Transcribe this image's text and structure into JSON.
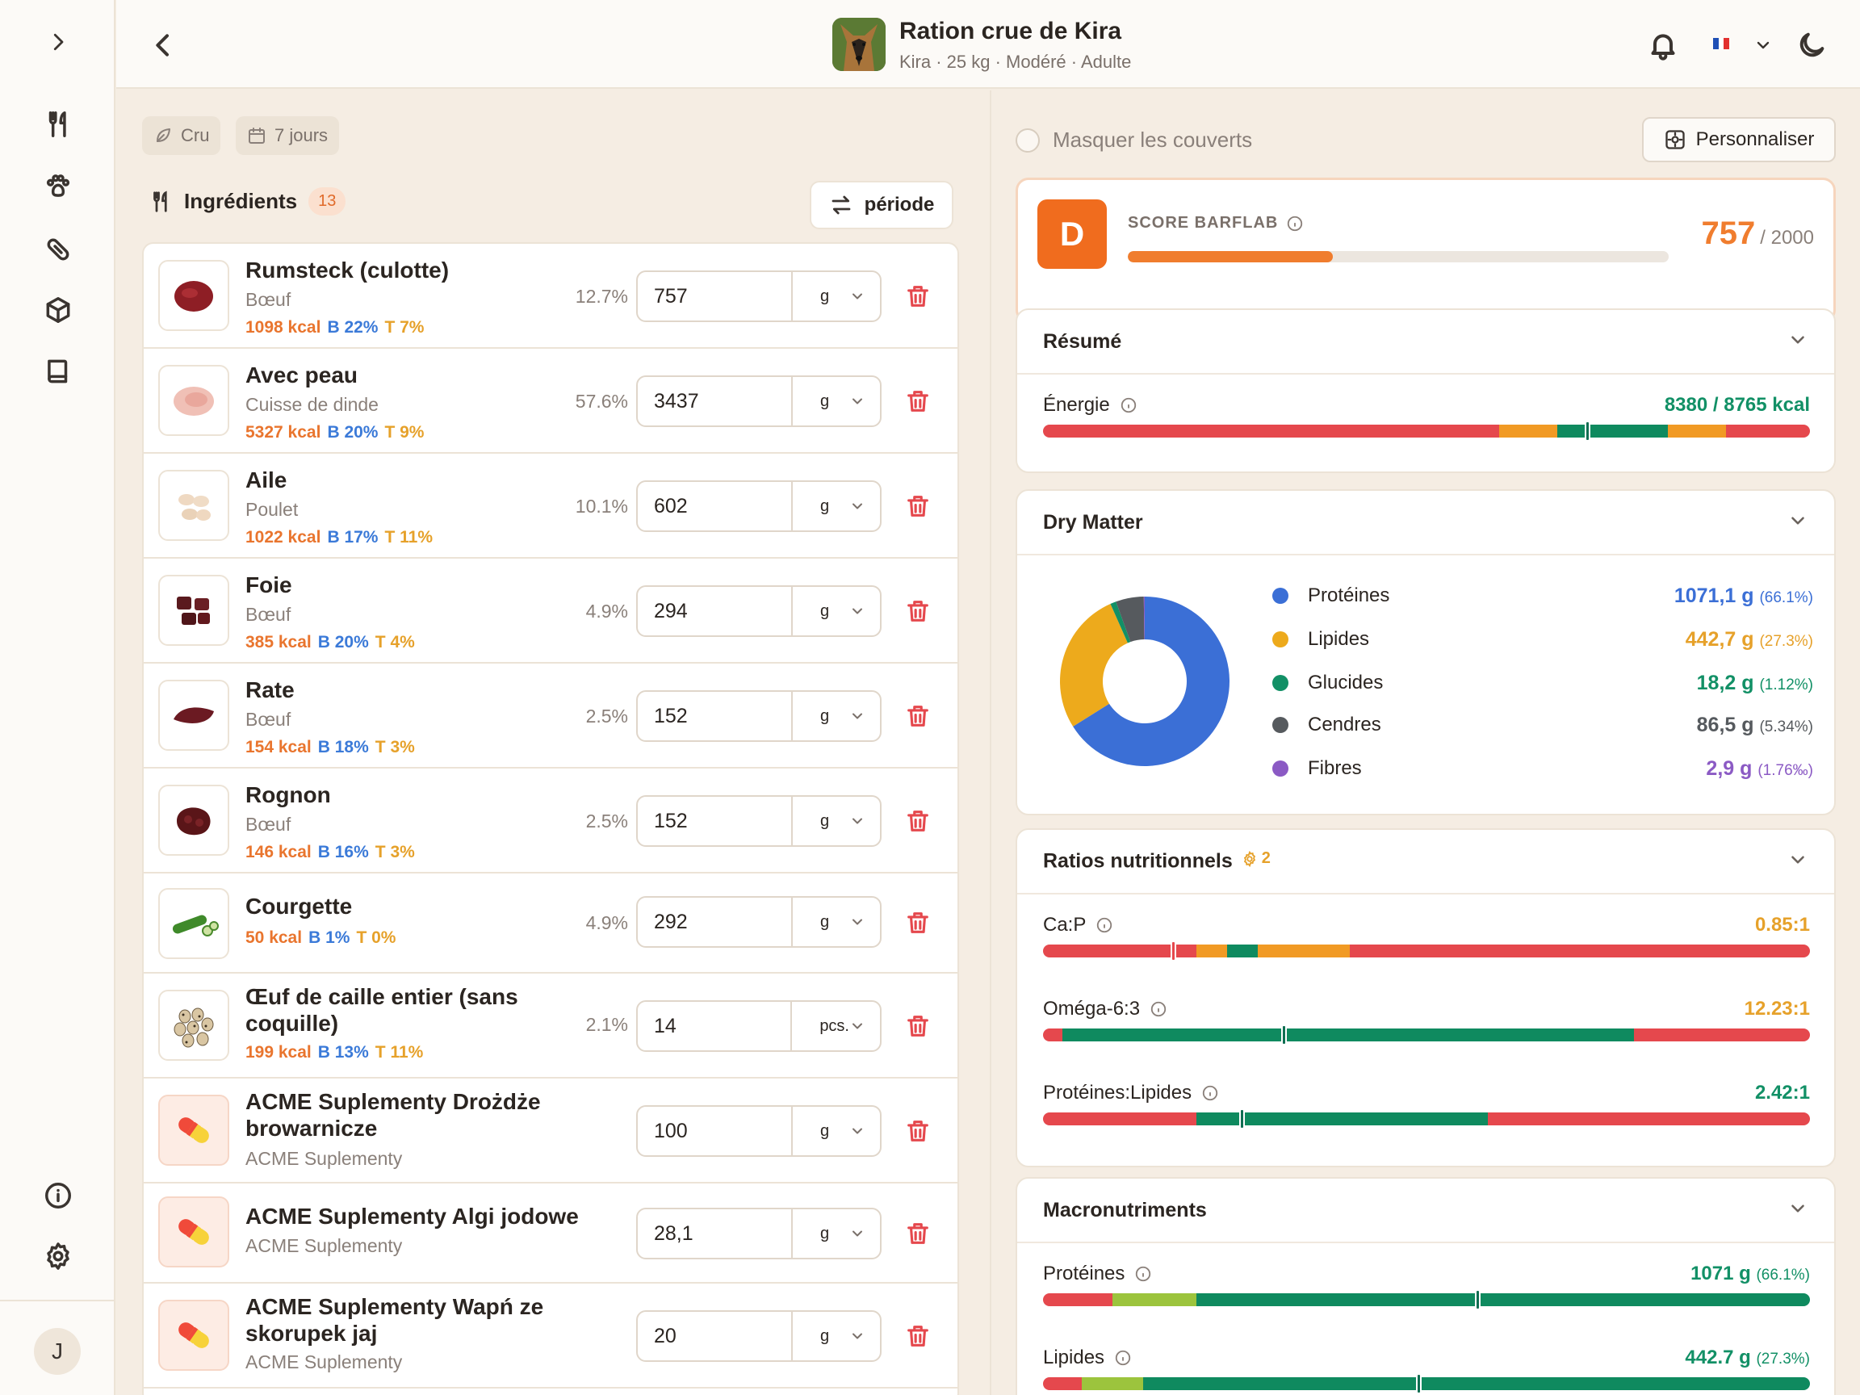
{
  "header": {
    "title": "Ration crue de Kira",
    "subtitle": "Kira · 25 kg · Modéré · Adulte"
  },
  "sidebar": {
    "items": [
      "expand-icon",
      "fork-knife-icon",
      "paw-icon",
      "pill-icon",
      "box-icon",
      "book-icon"
    ],
    "bottom": [
      "info-icon",
      "settings-icon"
    ],
    "avatar_initial": "J"
  },
  "filters": {
    "mode": "Cru",
    "duration": "7 jours"
  },
  "ingredients": {
    "title": "Ingrédients",
    "count": "13",
    "periode_label": "période",
    "items": [
      {
        "name": "Rumsteck (culotte)",
        "category": "Bœuf",
        "kcal": "1098 kcal",
        "b": "B 22%",
        "t": "T 7%",
        "pct": "12.7%",
        "qty": "757",
        "unit": "g"
      },
      {
        "name": "Avec peau",
        "category": "Cuisse de dinde",
        "kcal": "5327 kcal",
        "b": "B 20%",
        "t": "T 9%",
        "pct": "57.6%",
        "qty": "3437",
        "unit": "g"
      },
      {
        "name": "Aile",
        "category": "Poulet",
        "kcal": "1022 kcal",
        "b": "B 17%",
        "t": "T 11%",
        "pct": "10.1%",
        "qty": "602",
        "unit": "g"
      },
      {
        "name": "Foie",
        "category": "Bœuf",
        "kcal": "385 kcal",
        "b": "B 20%",
        "t": "T 4%",
        "pct": "4.9%",
        "qty": "294",
        "unit": "g"
      },
      {
        "name": "Rate",
        "category": "Bœuf",
        "kcal": "154 kcal",
        "b": "B 18%",
        "t": "T 3%",
        "pct": "2.5%",
        "qty": "152",
        "unit": "g"
      },
      {
        "name": "Rognon",
        "category": "Bœuf",
        "kcal": "146 kcal",
        "b": "B 16%",
        "t": "T 3%",
        "pct": "2.5%",
        "qty": "152",
        "unit": "g"
      },
      {
        "name": "Courgette",
        "category": "",
        "kcal": "50 kcal",
        "b": "B 1%",
        "t": "T 0%",
        "pct": "4.9%",
        "qty": "292",
        "unit": "g"
      },
      {
        "name": "Œuf de caille entier (sans coquille)",
        "category": "",
        "kcal": "199 kcal",
        "b": "B 13%",
        "t": "T 11%",
        "pct": "2.1%",
        "qty": "14",
        "unit": "pcs."
      },
      {
        "name": "ACME Suplementy Drożdże browarnicze",
        "category": "ACME Suplementy",
        "kcal": "",
        "b": "",
        "t": "",
        "pct": "",
        "qty": "100",
        "unit": "g"
      },
      {
        "name": "ACME Suplementy Algi jodowe",
        "category": "ACME Suplementy",
        "kcal": "",
        "b": "",
        "t": "",
        "pct": "",
        "qty": "28,1",
        "unit": "g"
      },
      {
        "name": "ACME Suplementy Wapń ze skorupek jaj",
        "category": "ACME Suplementy",
        "kcal": "",
        "b": "",
        "t": "",
        "pct": "",
        "qty": "20",
        "unit": "g"
      }
    ]
  },
  "right": {
    "mask_label": "Masquer les couverts",
    "personalize_label": "Personnaliser",
    "score": {
      "grade": "D",
      "label": "SCORE BARFLAB",
      "value": "757",
      "max": "/ 2000",
      "fraction": 0.3785
    },
    "resume": {
      "title": "Résumé",
      "energy_label": "Énergie",
      "energy_value": "8380 / 8765 kcal",
      "energy_position": 0.71
    },
    "dry_matter": {
      "title": "Dry Matter",
      "items": [
        {
          "name": "Protéines",
          "value": "1071,1 g",
          "pct": "(66.1%)",
          "color": "#3b6fd6"
        },
        {
          "name": "Lipides",
          "value": "442,7 g",
          "pct": "(27.3%)",
          "color": "#edaa1c"
        },
        {
          "name": "Glucides",
          "value": "18,2 g",
          "pct": "(1.12%)",
          "color": "#129066"
        },
        {
          "name": "Cendres",
          "value": "86,5 g",
          "pct": "(5.34%)",
          "color": "#565a5e"
        },
        {
          "name": "Fibres",
          "value": "2,9 g",
          "pct": "(1.76‰)",
          "color": "#8b5ac4"
        }
      ]
    },
    "ratios": {
      "title": "Ratios nutritionnels",
      "badge": "2",
      "items": [
        {
          "label": "Ca:P",
          "value": "0.85:1",
          "color": "#e6a12a",
          "position": 0.17
        },
        {
          "label": "Oméga-6:3",
          "value": "12.23:1",
          "color": "#e6a12a",
          "position": 0.315
        },
        {
          "label": "Protéines:Lipides",
          "value": "2.42:1",
          "color": "#129066",
          "position": 0.26
        }
      ]
    },
    "macros": {
      "title": "Macronutriments",
      "items": [
        {
          "label": "Protéines",
          "value": "1071 g",
          "pct": "(66.1%)",
          "position": 0.567
        },
        {
          "label": "Lipides",
          "value": "442.7 g",
          "pct": "(27.3%)",
          "position": 0.49
        }
      ]
    }
  }
}
